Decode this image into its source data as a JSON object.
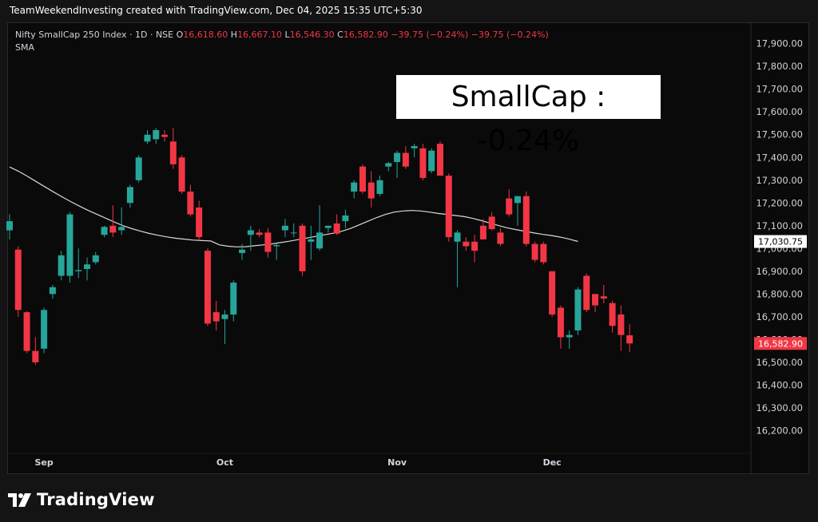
{
  "header": {
    "credit": "TeamWeekendInvesting created with TradingView.com, Dec 04, 2025 15:35 UTC+5:30"
  },
  "legend": {
    "symbol": "Nifty SmallCap 250 Index · 1D · NSE",
    "o_label": "O",
    "o_value": "16,618.60",
    "h_label": "H",
    "h_value": "16,667.10",
    "l_label": "L",
    "l_value": "16,546.30",
    "c_label": "C",
    "c_value": "16,582.90",
    "change": "−39.75 (−0.24%)",
    "change2": "−39.75 (−0.24%)",
    "indicator": "SMA"
  },
  "annotation": "SmallCap : -0.24%",
  "footer": {
    "brand": "TradingView",
    "logo_icon": "tradingview-logo-icon"
  },
  "colors": {
    "up": "#26a69a",
    "down": "#f23645",
    "sma": "#d9d9d9",
    "grid": "#1c1c1c",
    "axis_text": "#d1d4dc"
  },
  "chart_data": {
    "type": "candlestick",
    "title": "Nifty SmallCap 250 Index · 1D · NSE",
    "ylim": [
      16100,
      17990
    ],
    "y_ticks": [
      16200,
      16300,
      16400,
      16500,
      16600,
      16700,
      16800,
      16900,
      17000,
      17100,
      17200,
      17300,
      17400,
      17500,
      17600,
      17700,
      17800,
      17900
    ],
    "y_tick_labels": [
      "16,200.00",
      "16,300.00",
      "16,400.00",
      "16,500.00",
      "16,600.00",
      "16,700.00",
      "16,800.00",
      "16,900.00",
      "17,000.00",
      "17,100.00",
      "17,200.00",
      "17,300.00",
      "17,400.00",
      "17,500.00",
      "17,600.00",
      "17,700.00",
      "17,800.00",
      "17,900.00"
    ],
    "x_labels": [
      {
        "label": "Sep",
        "index": 4
      },
      {
        "label": "Oct",
        "index": 25
      },
      {
        "label": "Nov",
        "index": 45
      },
      {
        "label": "Dec",
        "index": 63
      }
    ],
    "sma_label": "17,030.75",
    "sma_value": 17030.75,
    "last_price_label": "16,582.90",
    "last_price": 16582.9,
    "candles": [
      {
        "o": 17080,
        "h": 17150,
        "l": 17040,
        "c": 17120
      },
      {
        "o": 16995,
        "h": 17010,
        "l": 16700,
        "c": 16730
      },
      {
        "o": 16720,
        "h": 16725,
        "l": 16540,
        "c": 16550
      },
      {
        "o": 16550,
        "h": 16610,
        "l": 16490,
        "c": 16500
      },
      {
        "o": 16560,
        "h": 16740,
        "l": 16540,
        "c": 16730
      },
      {
        "o": 16800,
        "h": 16840,
        "l": 16780,
        "c": 16830
      },
      {
        "o": 16880,
        "h": 16990,
        "l": 16860,
        "c": 16970
      },
      {
        "o": 16880,
        "h": 17160,
        "l": 16850,
        "c": 17150
      },
      {
        "o": 16900,
        "h": 17000,
        "l": 16870,
        "c": 16905
      },
      {
        "o": 16910,
        "h": 16960,
        "l": 16860,
        "c": 16930
      },
      {
        "o": 16940,
        "h": 16985,
        "l": 16930,
        "c": 16970
      },
      {
        "o": 17060,
        "h": 17100,
        "l": 17050,
        "c": 17095
      },
      {
        "o": 17100,
        "h": 17190,
        "l": 17050,
        "c": 17070
      },
      {
        "o": 17080,
        "h": 17180,
        "l": 17060,
        "c": 17095
      },
      {
        "o": 17200,
        "h": 17280,
        "l": 17180,
        "c": 17270
      },
      {
        "o": 17300,
        "h": 17410,
        "l": 17290,
        "c": 17400
      },
      {
        "o": 17470,
        "h": 17520,
        "l": 17460,
        "c": 17500
      },
      {
        "o": 17480,
        "h": 17530,
        "l": 17460,
        "c": 17520
      },
      {
        "o": 17500,
        "h": 17520,
        "l": 17470,
        "c": 17490
      },
      {
        "o": 17470,
        "h": 17530,
        "l": 17350,
        "c": 17370
      },
      {
        "o": 17400,
        "h": 17410,
        "l": 17240,
        "c": 17250
      },
      {
        "o": 17250,
        "h": 17280,
        "l": 17140,
        "c": 17150
      },
      {
        "o": 17180,
        "h": 17210,
        "l": 17040,
        "c": 17050
      },
      {
        "o": 16990,
        "h": 17000,
        "l": 16660,
        "c": 16670
      },
      {
        "o": 16720,
        "h": 16770,
        "l": 16640,
        "c": 16680
      },
      {
        "o": 16690,
        "h": 16730,
        "l": 16580,
        "c": 16710
      },
      {
        "o": 16710,
        "h": 16860,
        "l": 16680,
        "c": 16850
      },
      {
        "o": 16980,
        "h": 17020,
        "l": 16950,
        "c": 16995
      },
      {
        "o": 17060,
        "h": 17100,
        "l": 16990,
        "c": 17080
      },
      {
        "o": 17070,
        "h": 17085,
        "l": 17050,
        "c": 17060
      },
      {
        "o": 17070,
        "h": 17090,
        "l": 16960,
        "c": 16985
      },
      {
        "o": 17010,
        "h": 17020,
        "l": 16950,
        "c": 17015
      },
      {
        "o": 17080,
        "h": 17130,
        "l": 17050,
        "c": 17100
      },
      {
        "o": 17070,
        "h": 17110,
        "l": 17050,
        "c": 17070
      },
      {
        "o": 17100,
        "h": 17110,
        "l": 16880,
        "c": 16900
      },
      {
        "o": 17030,
        "h": 17100,
        "l": 16950,
        "c": 17040
      },
      {
        "o": 17000,
        "h": 17190,
        "l": 16990,
        "c": 17070
      },
      {
        "o": 17090,
        "h": 17100,
        "l": 17070,
        "c": 17100
      },
      {
        "o": 17110,
        "h": 17150,
        "l": 17060,
        "c": 17065
      },
      {
        "o": 17120,
        "h": 17170,
        "l": 17090,
        "c": 17145
      },
      {
        "o": 17250,
        "h": 17300,
        "l": 17220,
        "c": 17290
      },
      {
        "o": 17360,
        "h": 17370,
        "l": 17240,
        "c": 17250
      },
      {
        "o": 17290,
        "h": 17340,
        "l": 17180,
        "c": 17220
      },
      {
        "o": 17240,
        "h": 17320,
        "l": 17230,
        "c": 17300
      },
      {
        "o": 17360,
        "h": 17380,
        "l": 17340,
        "c": 17375
      },
      {
        "o": 17380,
        "h": 17430,
        "l": 17310,
        "c": 17420
      },
      {
        "o": 17420,
        "h": 17450,
        "l": 17350,
        "c": 17360
      },
      {
        "o": 17440,
        "h": 17460,
        "l": 17400,
        "c": 17450
      },
      {
        "o": 17440,
        "h": 17460,
        "l": 17300,
        "c": 17310
      },
      {
        "o": 17340,
        "h": 17440,
        "l": 17330,
        "c": 17430
      },
      {
        "o": 17460,
        "h": 17470,
        "l": 17320,
        "c": 17320
      },
      {
        "o": 17320,
        "h": 17330,
        "l": 17030,
        "c": 17050
      },
      {
        "o": 17030,
        "h": 17080,
        "l": 16830,
        "c": 17070
      },
      {
        "o": 17030,
        "h": 17050,
        "l": 16990,
        "c": 17010
      },
      {
        "o": 17030,
        "h": 17060,
        "l": 16940,
        "c": 16990
      },
      {
        "o": 17100,
        "h": 17130,
        "l": 17040,
        "c": 17040
      },
      {
        "o": 17140,
        "h": 17160,
        "l": 17080,
        "c": 17085
      },
      {
        "o": 17070,
        "h": 17090,
        "l": 17010,
        "c": 17020
      },
      {
        "o": 17220,
        "h": 17260,
        "l": 17140,
        "c": 17150
      },
      {
        "o": 17200,
        "h": 17230,
        "l": 17100,
        "c": 17230
      },
      {
        "o": 17230,
        "h": 17250,
        "l": 17010,
        "c": 17020
      },
      {
        "o": 17020,
        "h": 17030,
        "l": 16940,
        "c": 16950
      },
      {
        "o": 17020,
        "h": 17030,
        "l": 16930,
        "c": 16940
      },
      {
        "o": 16900,
        "h": 16900,
        "l": 16700,
        "c": 16710
      },
      {
        "o": 16740,
        "h": 16750,
        "l": 16560,
        "c": 16610
      },
      {
        "o": 16610,
        "h": 16640,
        "l": 16560,
        "c": 16620
      },
      {
        "o": 16640,
        "h": 16830,
        "l": 16620,
        "c": 16820
      },
      {
        "o": 16880,
        "h": 16890,
        "l": 16720,
        "c": 16730
      },
      {
        "o": 16800,
        "h": 16800,
        "l": 16720,
        "c": 16750
      },
      {
        "o": 16790,
        "h": 16840,
        "l": 16760,
        "c": 16780
      },
      {
        "o": 16760,
        "h": 16770,
        "l": 16630,
        "c": 16660
      },
      {
        "o": 16710,
        "h": 16750,
        "l": 16550,
        "c": 16620
      },
      {
        "o": 16618.6,
        "h": 16667.1,
        "l": 16546.3,
        "c": 16582.9
      }
    ],
    "sma": [
      17358,
      17340,
      17318,
      17295,
      17272,
      17249,
      17227,
      17206,
      17186,
      17167,
      17150,
      17133,
      17116,
      17100,
      17087,
      17076,
      17066,
      17058,
      17051,
      17045,
      17041,
      17037,
      17035,
      17033,
      17016,
      17010,
      17007,
      17008,
      17012,
      17016,
      17020,
      17026,
      17032,
      17039,
      17046,
      17053,
      17060,
      17067,
      17076,
      17088,
      17104,
      17120,
      17136,
      17150,
      17160,
      17165,
      17167,
      17165,
      17160,
      17154,
      17150,
      17145,
      17140,
      17132,
      17122,
      17111,
      17100,
      17090,
      17082,
      17075,
      17068,
      17062,
      17057,
      17050,
      17041,
      17031
    ],
    "sma_x_range": [
      0,
      66
    ]
  }
}
